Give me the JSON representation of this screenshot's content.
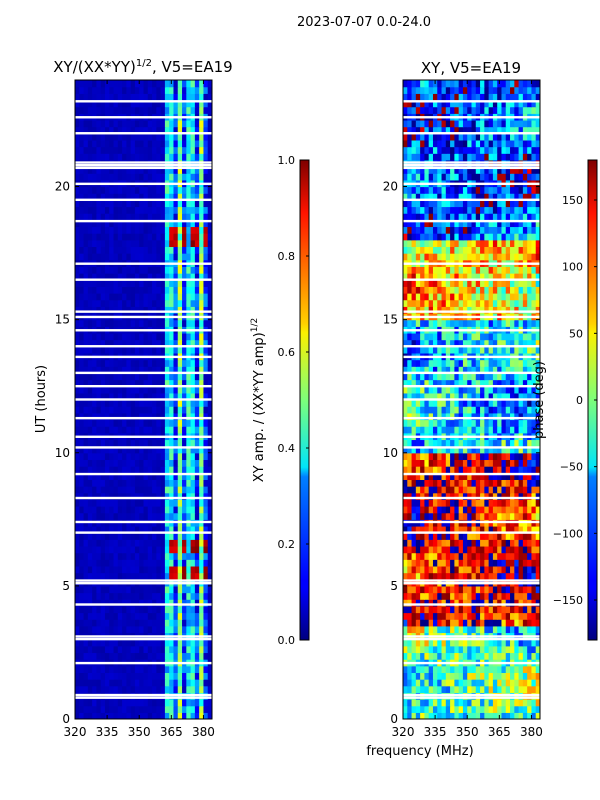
{
  "figure": {
    "suptitle": "2023-07-07 0.0-24.0",
    "shared_xlabel": "frequency (MHz)"
  },
  "chart_data": [
    {
      "type": "heatmap",
      "title": "XY/(XX*YY)",
      "title_exp": "1/2",
      "title_suffix": ", V5=EA19",
      "ylabel": "UT (hours)",
      "xlim": [
        320,
        384
      ],
      "ylim": [
        0,
        24
      ],
      "xticks": [
        "320",
        "335",
        "350",
        "365",
        "380"
      ],
      "xtick_values": [
        320,
        335,
        350,
        365,
        380
      ],
      "yticks": [
        "0",
        "5",
        "10",
        "15",
        "20"
      ],
      "ytick_values": [
        0,
        5,
        10,
        15,
        20
      ],
      "colorbar": {
        "label": "XY amp. / (XX*YY amp)",
        "label_exp": "1/2",
        "range": [
          0.0,
          1.0
        ],
        "ticks": [
          "0.0",
          "0.2",
          "0.4",
          "0.6",
          "0.8",
          "1.0"
        ],
        "tick_values": [
          0,
          0.2,
          0.4,
          0.6,
          0.8,
          1.0
        ],
        "colormap": "jet"
      },
      "bright_bands": [
        {
          "freq": 364,
          "amp": 0.55
        },
        {
          "freq": 369,
          "amp": 0.5
        },
        {
          "freq": 374,
          "amp": 0.55
        },
        {
          "freq": 379,
          "amp": 0.5
        }
      ],
      "high_amp_times_hr": [
        5.5,
        6.5,
        18.2
      ]
    },
    {
      "type": "heatmap",
      "title": "XY, V5=EA19",
      "ylabel": "",
      "xlim": [
        320,
        384
      ],
      "ylim": [
        0,
        24
      ],
      "xticks": [
        "320",
        "335",
        "350",
        "365",
        "380"
      ],
      "xtick_values": [
        320,
        335,
        350,
        365,
        380
      ],
      "yticks": [
        "0",
        "5",
        "10",
        "15",
        "20"
      ],
      "ytick_values": [
        0,
        5,
        10,
        15,
        20
      ],
      "colorbar": {
        "label": "phase (deg)",
        "range": [
          -180,
          180
        ],
        "ticks": [
          "−150",
          "−100",
          "−50",
          "0",
          "50",
          "100",
          "150"
        ],
        "tick_values": [
          -150,
          -100,
          -50,
          0,
          50,
          100,
          150
        ],
        "colormap": "jet"
      },
      "phase_regimes": [
        {
          "from_hr": 0,
          "to_hr": 3.5,
          "phase_deg": -20
        },
        {
          "from_hr": 3.5,
          "to_hr": 10,
          "phase_deg": 140
        },
        {
          "from_hr": 10,
          "to_hr": 15,
          "phase_deg": -60
        },
        {
          "from_hr": 15,
          "to_hr": 18,
          "phase_deg": 60
        },
        {
          "from_hr": 18,
          "to_hr": 24,
          "phase_deg": -110
        }
      ]
    }
  ],
  "flagged_rows_hr": [
    0.8,
    0.9,
    2.1,
    3.0,
    3.1,
    4.3,
    5.1,
    5.2,
    7.0,
    7.4,
    8.3,
    9.2,
    10.2,
    10.6,
    11.3,
    12.0,
    12.5,
    13.0,
    13.6,
    14.0,
    14.6,
    15.1,
    15.3,
    16.5,
    17.1,
    18.7,
    19.5,
    20.1,
    20.7,
    20.8,
    20.9,
    22.0,
    22.6,
    23.2
  ]
}
